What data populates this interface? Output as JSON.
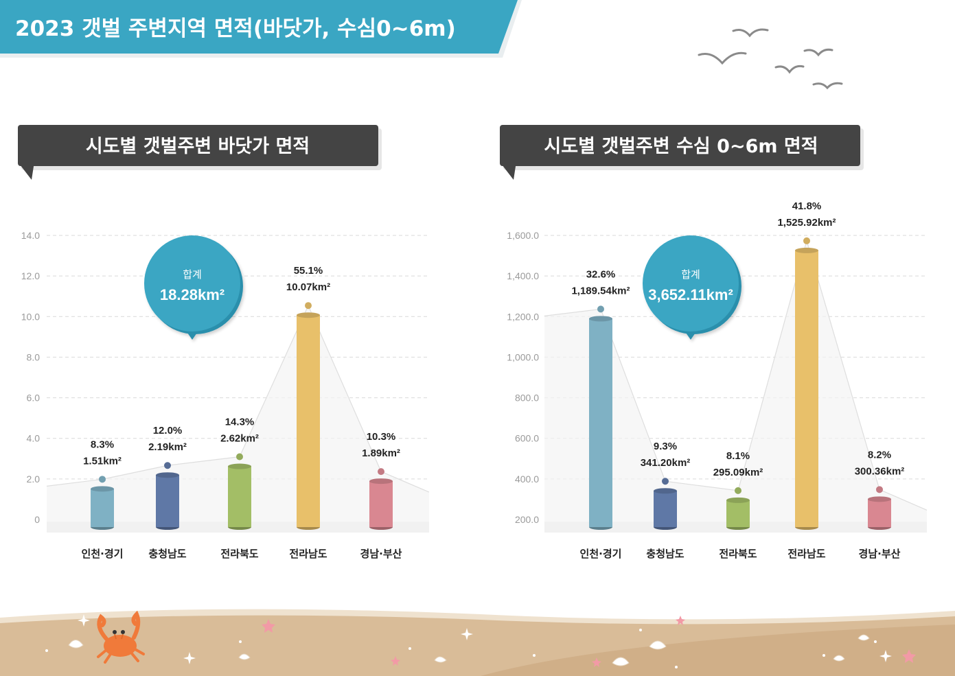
{
  "page_title": "2023 갯벌 주변지역 면적(바닷가, 수심0~6m)",
  "colors": {
    "banner": "#3aa6c3",
    "panel_header": "#444444",
    "bubble": "#3aa6c3",
    "bars": [
      "#7fb1c4",
      "#5f78a6",
      "#a3be66",
      "#e8c06a",
      "#d98791"
    ],
    "sand": "#d9bc98"
  },
  "decorations": [
    "seagull-icon",
    "crab-icon",
    "shell-icon",
    "starfish-icon",
    "sparkle-icon"
  ],
  "chart_data": [
    {
      "type": "bar",
      "title": "시도별 갯벌주변 바닷가 면적",
      "categories": [
        "인천·경기",
        "충청남도",
        "전라북도",
        "전라남도",
        "경남·부산"
      ],
      "values": [
        1.51,
        2.19,
        2.62,
        10.07,
        1.89
      ],
      "percents": [
        "8.3%",
        "12.0%",
        "14.3%",
        "55.1%",
        "10.3%"
      ],
      "value_labels": [
        "1.51km²",
        "2.19km²",
        "2.62km²",
        "10.07km²",
        "1.89km²"
      ],
      "ylim": [
        0,
        14
      ],
      "yticks": [
        "0",
        "2.0",
        "4.0",
        "6.0",
        "8.0",
        "10.0",
        "12.0",
        "14.0"
      ],
      "total_label": "합계",
      "total_value": "18.28km²",
      "grid": true
    },
    {
      "type": "bar",
      "title": "시도별 갯벌주변 수심 0~6m 면적",
      "categories": [
        "인천·경기",
        "충청남도",
        "전라북도",
        "전라남도",
        "경남·부산"
      ],
      "values": [
        1189.54,
        341.2,
        295.09,
        1525.92,
        300.36
      ],
      "percents": [
        "32.6%",
        "9.3%",
        "8.1%",
        "41.8%",
        "8.2%"
      ],
      "value_labels": [
        "1,189.54km²",
        "341.20km²",
        "295.09km²",
        "1,525.92km²",
        "300.36km²"
      ],
      "ylim": [
        200,
        1600
      ],
      "yticks": [
        "200.0",
        "400.0",
        "600.0",
        "800.0",
        "1,000.0",
        "1,200.0",
        "1,400.0",
        "1,600.0"
      ],
      "total_label": "합계",
      "total_value": "3,652.11km²",
      "grid": true
    }
  ]
}
